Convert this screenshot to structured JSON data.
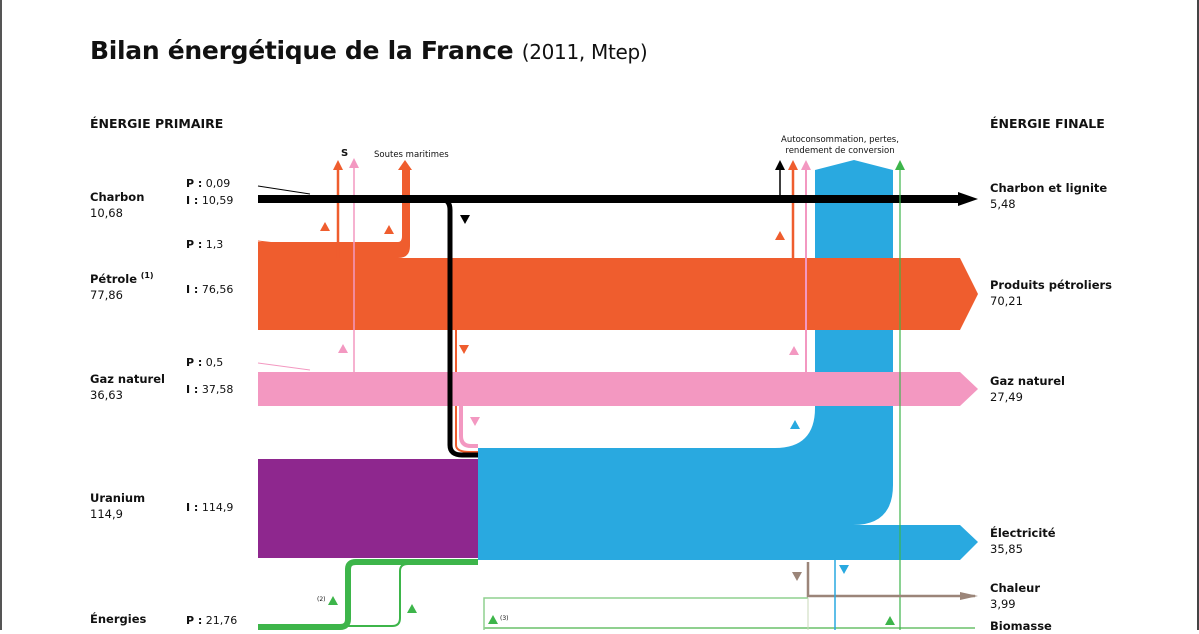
{
  "title": "Bilan énergétique de la France",
  "subtitle": "(2011, Mtep)",
  "headers": {
    "left": "ÉNERGIE PRIMAIRE",
    "right": "ÉNERGIE FINALE"
  },
  "primary": [
    {
      "name": "Charbon",
      "value": "10,68",
      "P": "0,09",
      "I": "10,59"
    },
    {
      "name": "Pétrole",
      "note": "(1)",
      "value": "77,86",
      "P": "1,3",
      "I": "76,56"
    },
    {
      "name": "Gaz naturel",
      "value": "36,63",
      "P": "0,5",
      "I": "37,58"
    },
    {
      "name": "Uranium",
      "value": "114,9",
      "I": "114,9"
    },
    {
      "name": "Énergies",
      "P": "21,76"
    }
  ],
  "labels": {
    "P": "P :",
    "I": "I :"
  },
  "final": [
    {
      "name": "Charbon et lignite",
      "value": "5,48"
    },
    {
      "name": "Produits pétroliers",
      "value": "70,21"
    },
    {
      "name": "Gaz naturel",
      "value": "27,49"
    },
    {
      "name": "Électricité",
      "value": "35,85"
    },
    {
      "name": "Chaleur",
      "value": "3,99"
    },
    {
      "name": "Biomasse"
    }
  ],
  "annotations": {
    "s": "S",
    "soutes": "Soutes maritimes",
    "autoconso_1": "Autoconsommation, pertes,",
    "autoconso_2": "rendement de conversion",
    "note2": "(2)",
    "note3": "(3)"
  },
  "colors": {
    "charbon": "#000000",
    "petrole": "#ef5d2e",
    "gaz": "#f398c1",
    "uranium": "#8e278e",
    "electricite": "#29a9e0",
    "renouvelables": "#3db54a",
    "chaleur": "#9b8579"
  }
}
